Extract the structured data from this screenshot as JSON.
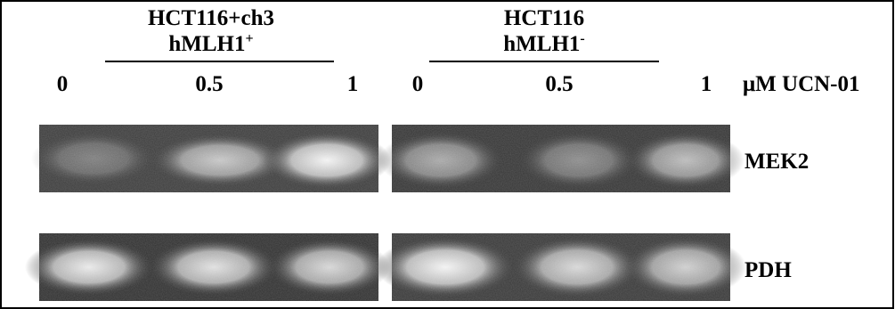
{
  "groups": [
    {
      "line1": "HCT116+ch3",
      "line2": {
        "name": "hMLH1",
        "superscript": "+"
      },
      "lanes": [
        "0",
        "0.5",
        "1"
      ]
    },
    {
      "line1": "HCT116",
      "line2": {
        "name": "hMLH1",
        "superscript": "-"
      },
      "lanes": [
        "0",
        "0.5",
        "1"
      ]
    }
  ],
  "unit_label": "μM UCN-01",
  "rows": [
    "MEK2",
    "PDH"
  ]
}
